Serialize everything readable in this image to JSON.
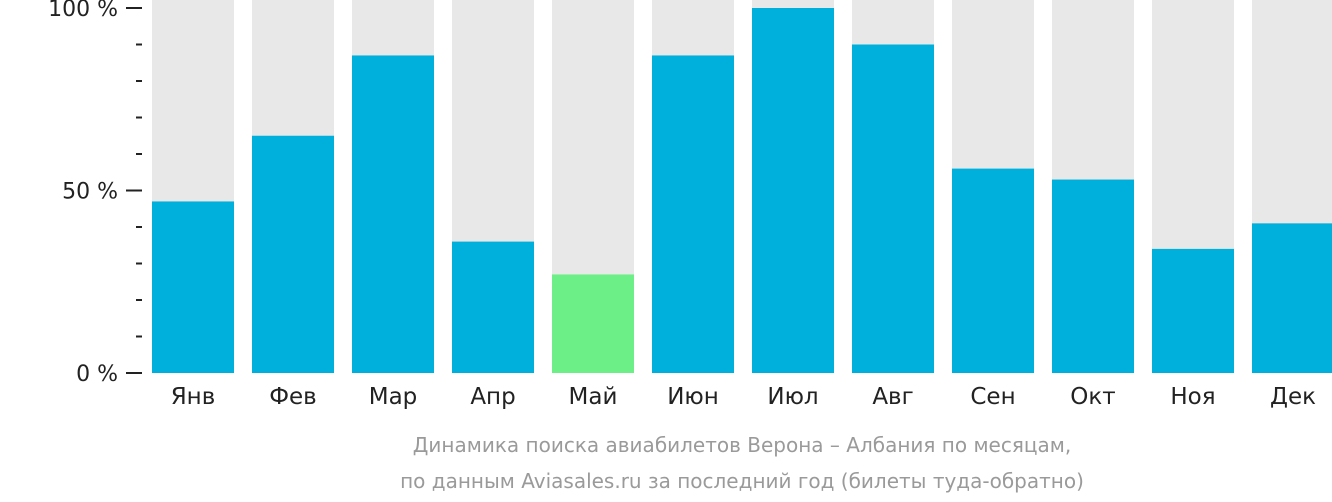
{
  "chart_data": {
    "type": "bar",
    "categories": [
      "Янв",
      "Фев",
      "Мар",
      "Апр",
      "Май",
      "Июн",
      "Июл",
      "Авг",
      "Сен",
      "Окт",
      "Ноя",
      "Дек"
    ],
    "values": [
      47,
      65,
      87,
      36,
      27,
      87,
      100,
      90,
      56,
      53,
      34,
      41
    ],
    "highlight_index": 4,
    "ylim": [
      0,
      100
    ],
    "y_ticks": [
      {
        "value": 0,
        "label": "0 %"
      },
      {
        "value": 50,
        "label": "50 %"
      },
      {
        "value": 100,
        "label": "100 %"
      }
    ],
    "minor_tick_step": 10,
    "title": "",
    "xlabel": "",
    "ylabel": "",
    "caption_lines": [
      "Динамика поиска авиабилетов Верона – Албания по месяцам,",
      "по данным Aviasales.ru за последний год (билеты туда-обратно)"
    ],
    "colors": {
      "bar": "#00b0dc",
      "highlight": "#6cef87",
      "track": "#e8e8e8",
      "axis": "#222222"
    }
  }
}
